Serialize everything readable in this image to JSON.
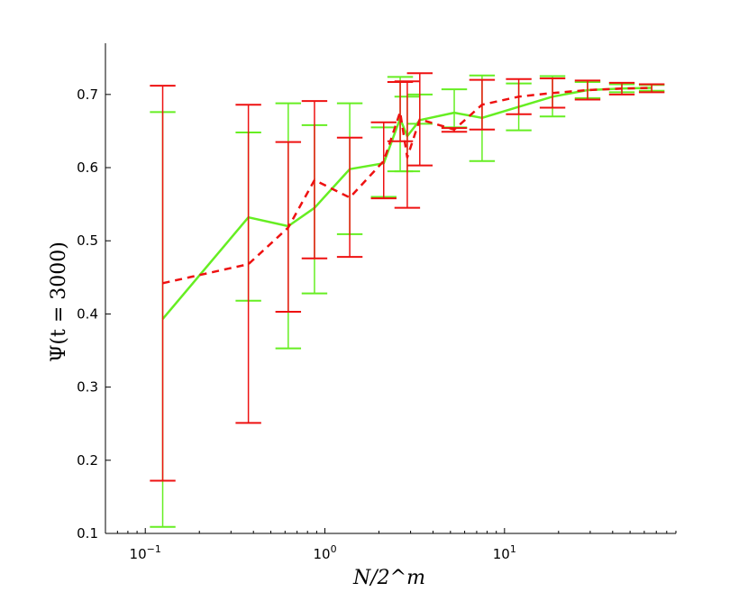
{
  "chart_data": {
    "type": "line",
    "xlabel": "N/2^m",
    "ylabel": "Ψ(t = 3000)",
    "xscale": "log",
    "xlim": [
      0.06,
      90
    ],
    "ylim": [
      0.1,
      0.77
    ],
    "grid": false,
    "x_ticks": [
      {
        "value": 0.1,
        "base": "10",
        "exp": "−1"
      },
      {
        "value": 1,
        "base": "10",
        "exp": "0"
      },
      {
        "value": 10,
        "base": "10",
        "exp": "1"
      }
    ],
    "y_ticks": [
      {
        "value": 0.1,
        "label": "0.1"
      },
      {
        "value": 0.2,
        "label": "0.2"
      },
      {
        "value": 0.3,
        "label": "0.3"
      },
      {
        "value": 0.4,
        "label": "0.4"
      },
      {
        "value": 0.5,
        "label": "0.5"
      },
      {
        "value": 0.6,
        "label": "0.6"
      },
      {
        "value": 0.7,
        "label": "0.7"
      }
    ],
    "series": [
      {
        "color": "#66ee22",
        "style": "solid",
        "x": [
          0.125,
          0.375,
          0.625,
          0.875,
          1.375,
          2.125,
          2.625,
          2.875,
          3.375,
          5.25,
          7.5,
          12,
          18.5,
          29,
          45,
          66
        ],
        "y": [
          0.393,
          0.532,
          0.52,
          0.545,
          0.598,
          0.606,
          0.667,
          0.643,
          0.665,
          0.675,
          0.668,
          0.683,
          0.697,
          0.706,
          0.708,
          0.709
        ],
        "yerr_low": [
          0.109,
          0.418,
          0.353,
          0.428,
          0.509,
          0.56,
          0.595,
          0.595,
          0.66,
          0.655,
          0.609,
          0.651,
          0.67,
          0.695,
          0.703,
          0.705
        ],
        "yerr_high": [
          0.676,
          0.648,
          0.688,
          0.658,
          0.688,
          0.655,
          0.724,
          0.697,
          0.7,
          0.707,
          0.726,
          0.715,
          0.725,
          0.717,
          0.714,
          0.713
        ]
      },
      {
        "color": "#ee1111",
        "style": "dashed",
        "x": [
          0.125,
          0.375,
          0.625,
          0.875,
          1.375,
          2.125,
          2.625,
          2.875,
          3.375,
          5.25,
          7.5,
          12,
          18.5,
          29,
          45,
          66
        ],
        "y": [
          0.442,
          0.468,
          0.518,
          0.583,
          0.559,
          0.609,
          0.676,
          0.614,
          0.666,
          0.652,
          0.686,
          0.697,
          0.702,
          0.706,
          0.708,
          0.709
        ],
        "yerr_low": [
          0.172,
          0.251,
          0.403,
          0.476,
          0.478,
          0.558,
          0.636,
          0.545,
          0.603,
          0.649,
          0.652,
          0.673,
          0.682,
          0.693,
          0.7,
          0.703
        ],
        "yerr_high": [
          0.712,
          0.686,
          0.635,
          0.691,
          0.641,
          0.662,
          0.717,
          0.718,
          0.729,
          0.654,
          0.72,
          0.721,
          0.722,
          0.719,
          0.716,
          0.714
        ]
      }
    ]
  }
}
